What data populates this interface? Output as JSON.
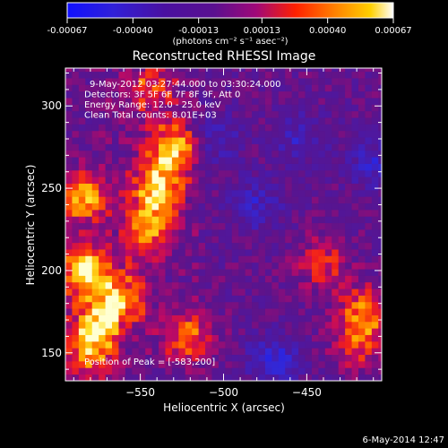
{
  "chart_data": {
    "type": "heatmap",
    "title": "Reconstructed RHESSI Image",
    "xlabel": "Heliocentric X (arcsec)",
    "ylabel": "Heliocentric Y (arcsec)",
    "xlim": [
      -595,
      -405
    ],
    "ylim": [
      133,
      323
    ],
    "x_ticks": [
      -550,
      -500,
      -450
    ],
    "y_ticks": [
      150,
      200,
      250,
      300
    ],
    "colorbar": {
      "min": -0.00067,
      "max": 0.00067,
      "tick_values": [
        -0.00067,
        -0.0004,
        -0.00013,
        0.00013,
        0.0004,
        0.00067
      ],
      "tick_labels": [
        "-0.00067",
        "-0.00040",
        "-0.00013",
        "0.00013",
        "0.00040",
        "0.00067"
      ],
      "unit_label": "(photons cm⁻² s⁻¹ asec⁻²)"
    },
    "annotations": [
      "9-May-2012 03:27:44.000 to 03:30:24.000",
      "Detectors: 3F 5F 6F 7F 8F 9F, Att 0",
      "Energy Range: 12.0 - 25.0 keV",
      "Clean     Total counts: 8.01E+03"
    ],
    "peak_label": "Position of Peak = [-583,200]",
    "peak": [
      -583,
      200
    ],
    "bright_regions": [
      {
        "x": -583,
        "y": 200,
        "level": 0.95
      },
      {
        "x": -585,
        "y": 245,
        "level": 0.85
      },
      {
        "x": -540,
        "y": 250,
        "level": 0.85
      },
      {
        "x": -530,
        "y": 275,
        "level": 0.9
      },
      {
        "x": -545,
        "y": 225,
        "level": 0.75
      },
      {
        "x": -575,
        "y": 170,
        "level": 0.8
      },
      {
        "x": -580,
        "y": 150,
        "level": 0.75
      },
      {
        "x": -560,
        "y": 185,
        "level": 0.7
      },
      {
        "x": -520,
        "y": 160,
        "level": 0.65
      },
      {
        "x": -545,
        "y": 310,
        "level": 0.6
      },
      {
        "x": -415,
        "y": 175,
        "level": 0.75
      },
      {
        "x": -440,
        "y": 205,
        "level": 0.55
      },
      {
        "x": -420,
        "y": 155,
        "level": 0.5
      }
    ],
    "dim_regions": [
      {
        "x": -470,
        "y": 145,
        "level": -0.6
      },
      {
        "x": -480,
        "y": 240,
        "level": -0.45
      },
      {
        "x": -505,
        "y": 280,
        "level": -0.4
      },
      {
        "x": -455,
        "y": 280,
        "level": -0.4
      },
      {
        "x": -410,
        "y": 265,
        "level": -0.45
      }
    ]
  },
  "footer_date": "6-May-2014 12:47"
}
